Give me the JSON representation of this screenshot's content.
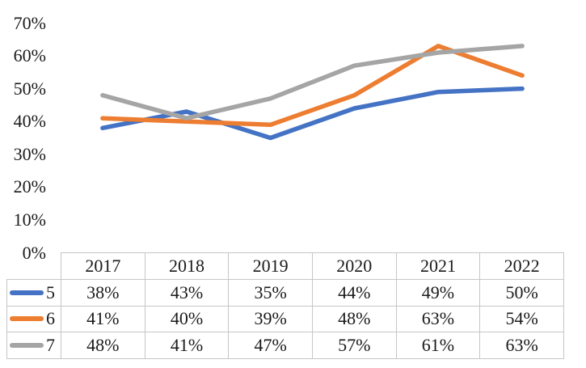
{
  "chart_data": {
    "type": "line",
    "title": "",
    "xlabel": "",
    "ylabel": "",
    "categories": [
      "2017",
      "2018",
      "2019",
      "2020",
      "2021",
      "2022"
    ],
    "series": [
      {
        "name": "5",
        "color": "#4472C4",
        "values": [
          38,
          43,
          35,
          44,
          49,
          50
        ]
      },
      {
        "name": "6",
        "color": "#ED7D31",
        "values": [
          41,
          40,
          39,
          48,
          63,
          54
        ]
      },
      {
        "name": "7",
        "color": "#A5A5A5",
        "values": [
          48,
          41,
          47,
          57,
          61,
          63
        ]
      }
    ],
    "ylim": [
      0,
      70
    ],
    "ytick_step": 10,
    "ytick_labels": [
      "0%",
      "10%",
      "20%",
      "30%",
      "40%",
      "50%",
      "60%",
      "70%"
    ],
    "value_suffix": "%",
    "grid": false,
    "legend_position": "table-rows-left"
  },
  "colors": {
    "text": "#1A1A1A",
    "table_border": "#C6C6C6",
    "background": "#FFFFFF",
    "series_blue": "#4472C4",
    "series_orange": "#ED7D31",
    "series_gray": "#A5A5A5"
  }
}
